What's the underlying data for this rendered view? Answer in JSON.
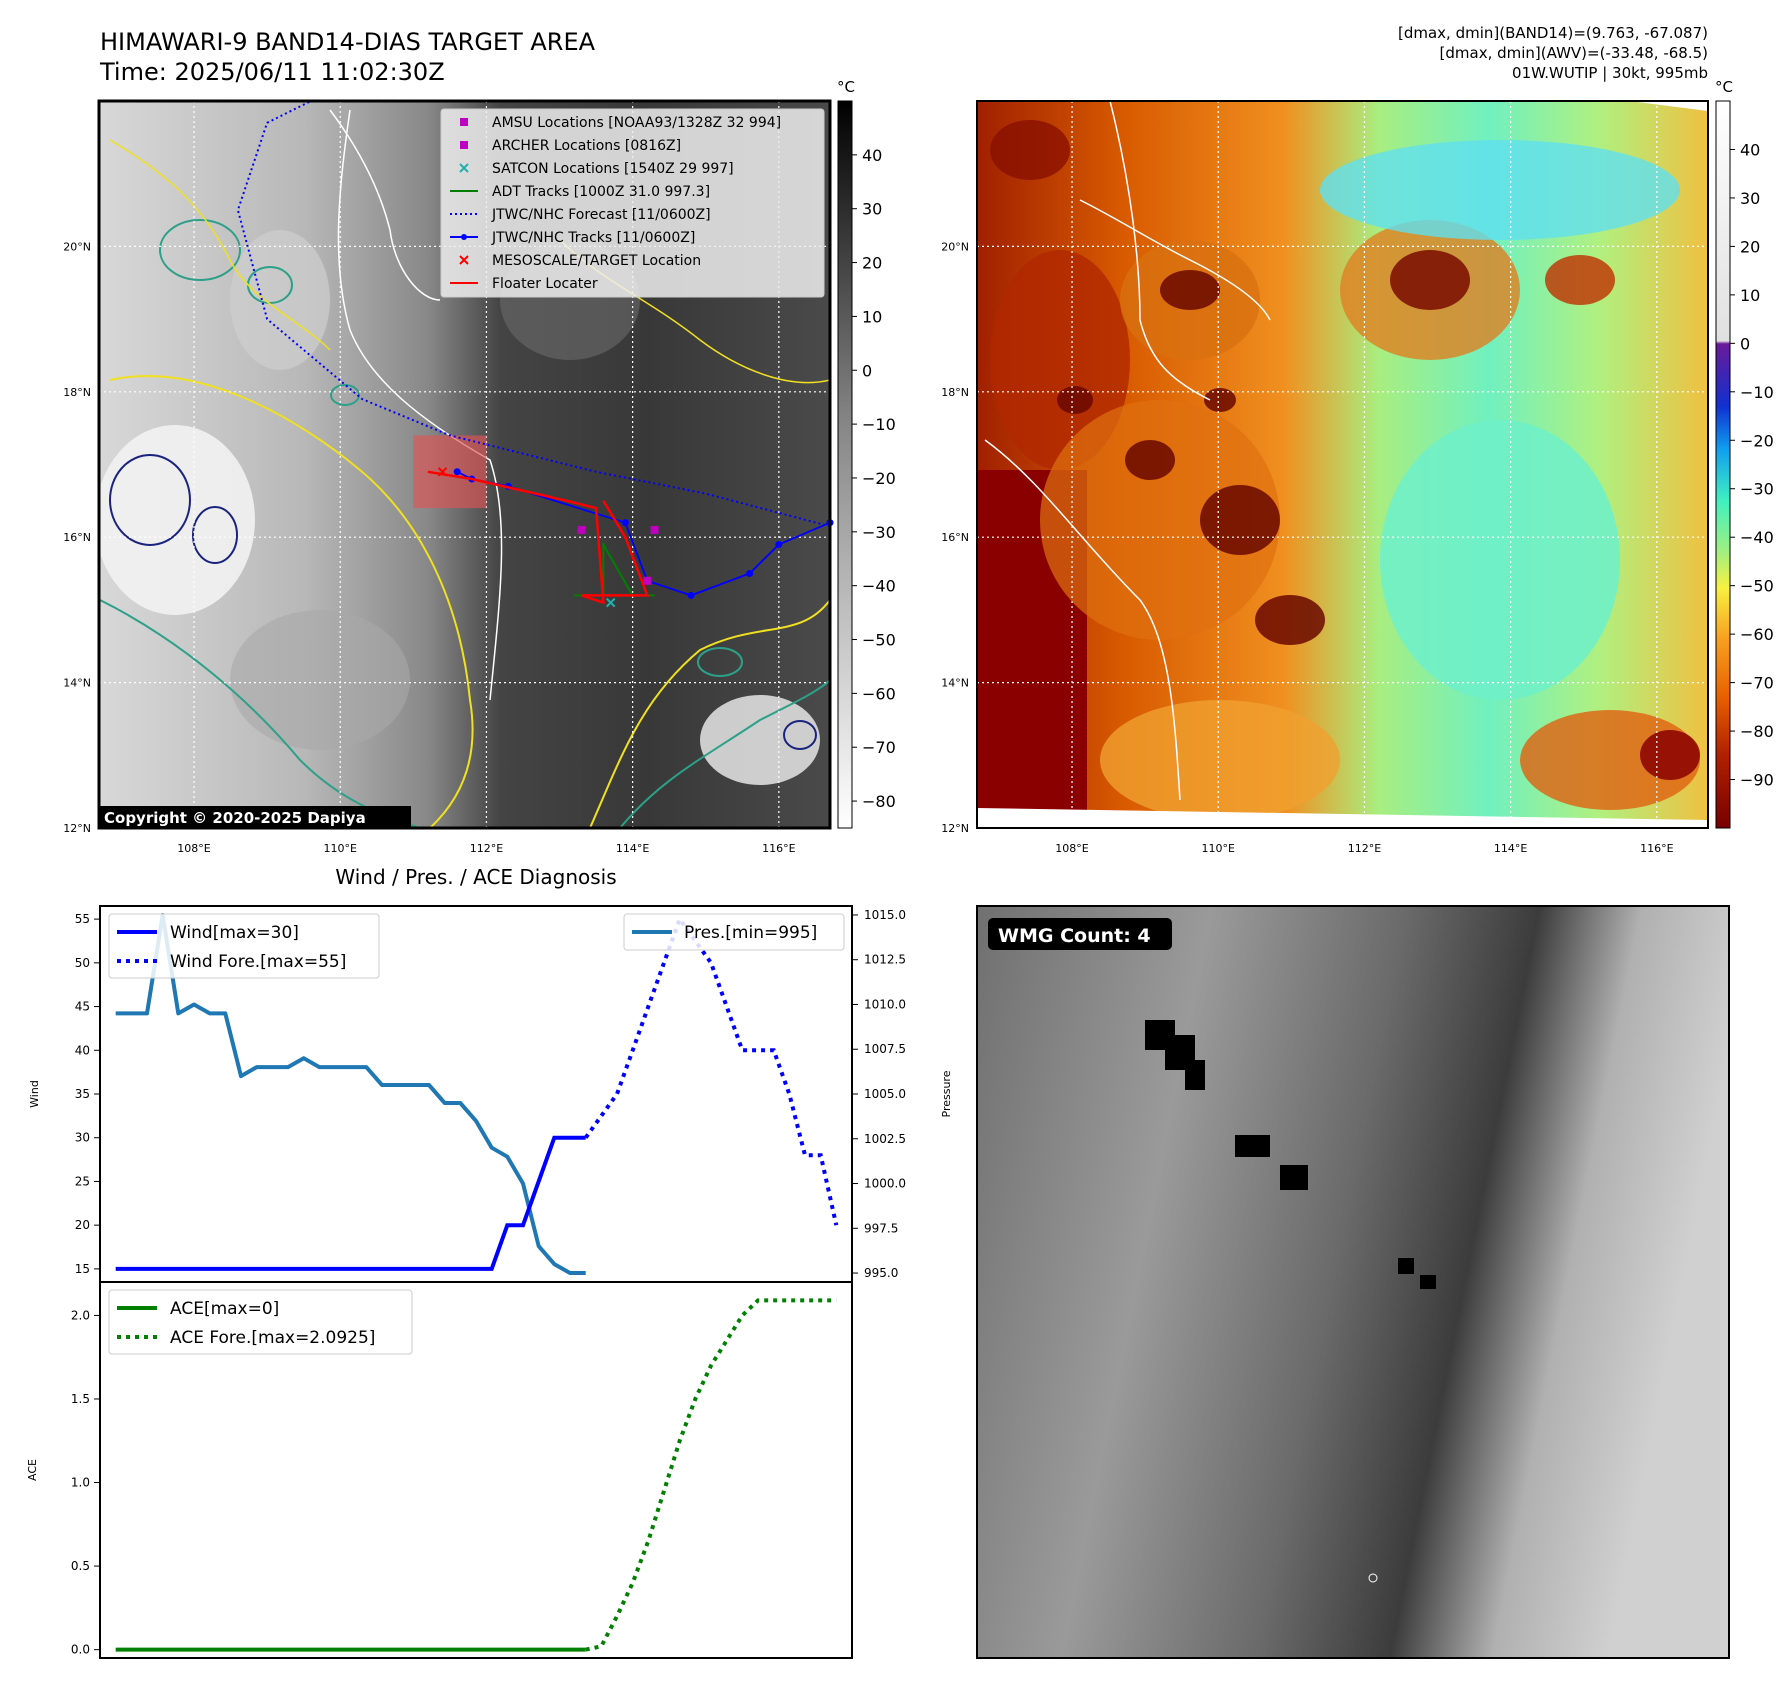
{
  "header": {
    "title_line1": "HIMAWARI-9 BAND14-DIAS TARGET AREA",
    "title_line2": "Time: 2025/06/11 11:02:30Z",
    "info_line1": "[dmax, dmin](BAND14)=(9.763, -67.087)",
    "info_line2": "[dmax, dmin](AWV)=(-33.48, -68.5)",
    "info_line3": "01W.WUTIP | 30kt, 995mb"
  },
  "map": {
    "lat_labels": [
      "20°N",
      "18°N",
      "16°N",
      "14°N",
      "12°N"
    ],
    "lat_values": [
      20,
      18,
      16,
      14,
      12
    ],
    "lon_labels": [
      "108°E",
      "110°E",
      "112°E",
      "114°E",
      "116°E"
    ],
    "lon_values": [
      108,
      110,
      112,
      114,
      116
    ],
    "lat_range": [
      12,
      22
    ],
    "lon_range": [
      106.7,
      116.7
    ],
    "copyright": "Copyright © 2020-2025 Dapiya"
  },
  "colorbar_ir": {
    "unit": "°C",
    "ticks": [
      "40",
      "30",
      "20",
      "10",
      "0",
      "−10",
      "−20",
      "−30",
      "−40",
      "−50",
      "−60",
      "−70",
      "−80"
    ],
    "tick_values": [
      40,
      30,
      20,
      10,
      0,
      -10,
      -20,
      -30,
      -40,
      -50,
      -60,
      -70,
      -80
    ],
    "range": [
      -85,
      50
    ]
  },
  "colorbar_color": {
    "unit": "°C",
    "ticks": [
      "40",
      "30",
      "20",
      "10",
      "0",
      "−10",
      "−20",
      "−30",
      "−40",
      "−50",
      "−60",
      "−70",
      "−80",
      "−90"
    ],
    "tick_values": [
      40,
      30,
      20,
      10,
      0,
      -10,
      -20,
      -30,
      -40,
      -50,
      -60,
      -70,
      -80,
      -90
    ],
    "range": [
      -100,
      50
    ]
  },
  "legend": {
    "items": [
      {
        "label": "AMSU Locations [NOAA93/1328Z 32 994]",
        "marker": "square",
        "color": "#c000c0"
      },
      {
        "label": "ARCHER Locations [0816Z]",
        "marker": "square",
        "color": "#c000c0"
      },
      {
        "label": "SATCON Locations [1540Z 29 997]",
        "marker": "x",
        "color": "#20b0b0"
      },
      {
        "label": "ADT Tracks [1000Z 31.0 997.3]",
        "marker": "line",
        "color": "#008000"
      },
      {
        "label": "JTWC/NHC Forecast [11/0600Z]",
        "marker": "dotted",
        "color": "#0000ff"
      },
      {
        "label": "JTWC/NHC Tracks [11/0600Z]",
        "marker": "line-dot",
        "color": "#0000ff"
      },
      {
        "label": "MESOSCALE/TARGET Location",
        "marker": "x",
        "color": "#ff0000"
      },
      {
        "label": "Floater Locater",
        "marker": "line",
        "color": "#ff0000"
      }
    ]
  },
  "tracks": {
    "jtwc_forecast": [
      [
        116.7,
        16.15
      ],
      [
        115.0,
        16.6
      ],
      [
        113.5,
        16.9
      ],
      [
        111.5,
        17.4
      ],
      [
        110.3,
        17.9
      ],
      [
        109.0,
        19.0
      ],
      [
        108.6,
        20.5
      ],
      [
        109.0,
        21.7
      ],
      [
        109.6,
        22.0
      ]
    ],
    "jtwc_track": [
      [
        116.7,
        16.2
      ],
      [
        116.0,
        15.9
      ],
      [
        115.6,
        15.5
      ],
      [
        114.8,
        15.2
      ],
      [
        114.2,
        15.4
      ],
      [
        113.9,
        16.2
      ],
      [
        112.3,
        16.7
      ],
      [
        111.8,
        16.8
      ],
      [
        111.6,
        16.9
      ]
    ],
    "adt_track": [
      [
        113.2,
        15.2
      ],
      [
        113.6,
        15.2
      ],
      [
        113.6,
        15.9
      ],
      [
        114.0,
        15.2
      ],
      [
        114.3,
        15.2
      ]
    ],
    "floater": [
      [
        111.2,
        16.9
      ],
      [
        111.8,
        16.8
      ],
      [
        113.1,
        16.5
      ],
      [
        113.5,
        16.4
      ],
      [
        113.6,
        15.1
      ],
      [
        113.3,
        15.2
      ],
      [
        114.2,
        15.2
      ],
      [
        113.9,
        16.0
      ],
      [
        113.6,
        16.5
      ]
    ],
    "amsu": [
      [
        113.3,
        16.1
      ],
      [
        114.3,
        16.1
      ],
      [
        114.2,
        15.4
      ]
    ],
    "satcon": [
      [
        113.7,
        15.1
      ]
    ],
    "target": [
      [
        111.4,
        16.9
      ]
    ],
    "target_box": {
      "lon": [
        111.0,
        112.0
      ],
      "lat": [
        16.4,
        17.4
      ]
    }
  },
  "wind_chart": {
    "title": "Wind / Pres. / ACE Diagnosis",
    "ylabel_left": "Wind",
    "ylabel_right": "Pressure",
    "legend_wind": "Wind[max=30]",
    "legend_wind_fore": "Wind Fore.[max=55]",
    "legend_pres": "Pres.[min=995]",
    "yticks_left": [
      "55",
      "50",
      "45",
      "40",
      "35",
      "30",
      "25",
      "20",
      "15"
    ],
    "ytick_values_left": [
      55,
      50,
      45,
      40,
      35,
      30,
      25,
      20,
      15
    ],
    "ylim_left": [
      13.5,
      56.5
    ],
    "yticks_right": [
      "1015.0",
      "1012.5",
      "1010.0",
      "1007.5",
      "1005.0",
      "1002.5",
      "1000.0",
      "997.5",
      "995.0"
    ],
    "ytick_values_right": [
      1015.0,
      1012.5,
      1010.0,
      1007.5,
      1005.0,
      1002.5,
      1000.0,
      997.5,
      995.0
    ],
    "ylim_right": [
      994.5,
      1015.5
    ],
    "xlim": [
      -1,
      47
    ],
    "wind": [
      [
        0,
        15
      ],
      [
        24,
        15
      ],
      [
        25,
        20
      ],
      [
        26,
        20
      ],
      [
        28,
        30
      ],
      [
        30,
        30
      ]
    ],
    "wind_fore": [
      [
        30,
        30
      ],
      [
        32,
        35
      ],
      [
        33,
        40
      ],
      [
        34,
        45
      ],
      [
        35,
        50
      ],
      [
        36,
        55
      ],
      [
        38,
        50
      ],
      [
        39,
        45
      ],
      [
        40,
        40
      ],
      [
        42,
        40
      ],
      [
        43,
        35
      ],
      [
        44,
        28
      ],
      [
        45,
        28
      ],
      [
        46,
        20
      ]
    ],
    "pressure": [
      [
        0,
        1009.5
      ],
      [
        2,
        1009.5
      ],
      [
        3,
        1015.0
      ],
      [
        4,
        1009.5
      ],
      [
        5,
        1010.0
      ],
      [
        6,
        1009.5
      ],
      [
        7,
        1009.5
      ],
      [
        8,
        1006.0
      ],
      [
        9,
        1006.5
      ],
      [
        11,
        1006.5
      ],
      [
        12,
        1007.0
      ],
      [
        13,
        1006.5
      ],
      [
        16,
        1006.5
      ],
      [
        17,
        1005.5
      ],
      [
        20,
        1005.5
      ],
      [
        21,
        1004.5
      ],
      [
        22,
        1004.5
      ],
      [
        23,
        1003.5
      ],
      [
        24,
        1002.0
      ],
      [
        25,
        1001.5
      ],
      [
        26,
        1000.0
      ],
      [
        27,
        996.5
      ],
      [
        28,
        995.5
      ],
      [
        29,
        995.0
      ],
      [
        30,
        995.0
      ]
    ]
  },
  "ace_chart": {
    "ylabel": "ACE",
    "legend_ace": "ACE[max=0]",
    "legend_ace_fore": "ACE Fore.[max=2.0925]",
    "yticks": [
      "2.0",
      "1.5",
      "1.0",
      "0.5",
      "0.0"
    ],
    "ytick_values": [
      2.0,
      1.5,
      1.0,
      0.5,
      0.0
    ],
    "ylim": [
      -0.05,
      2.2
    ],
    "xlim": [
      -1,
      47
    ],
    "ace": [
      [
        0,
        0
      ],
      [
        30,
        0
      ]
    ],
    "ace_fore": [
      [
        30,
        0
      ],
      [
        31,
        0.02
      ],
      [
        32,
        0.2
      ],
      [
        33,
        0.4
      ],
      [
        34,
        0.65
      ],
      [
        35,
        0.95
      ],
      [
        36,
        1.25
      ],
      [
        37,
        1.5
      ],
      [
        38,
        1.7
      ],
      [
        39,
        1.85
      ],
      [
        40,
        2.0
      ],
      [
        41,
        2.09
      ],
      [
        46,
        2.09
      ]
    ]
  },
  "wmg": {
    "label": "WMG Count: 4",
    "count": 4
  },
  "colors": {
    "axis": "#000000",
    "grid": "#ffffff",
    "wind": "#0000ff",
    "pressure": "#1f77b4",
    "ace": "#008000",
    "floater": "#ff0000",
    "target_box": "#e05555"
  }
}
